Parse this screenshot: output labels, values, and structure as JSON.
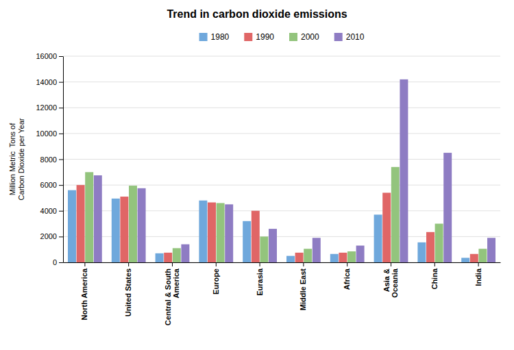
{
  "chart_data": {
    "type": "bar",
    "title": "Trend in carbon dioxide emissions",
    "ylabel": "Million Metric  Tons of\nCarbon Dioxide per Year",
    "categories": [
      "North America",
      "United States",
      "Central & South\nAmerica",
      "Europe",
      "Eurasia",
      "Middle East",
      "Africa",
      "Asia &\nOceania",
      "China",
      "India"
    ],
    "series": [
      {
        "name": "1980",
        "color": "#6fa8dc",
        "values": [
          5600,
          4950,
          700,
          4800,
          3200,
          500,
          650,
          3700,
          1550,
          350
        ]
      },
      {
        "name": "1990",
        "color": "#e06666",
        "values": [
          6000,
          5100,
          750,
          4650,
          4000,
          750,
          750,
          5400,
          2350,
          650
        ]
      },
      {
        "name": "2000",
        "color": "#93c47d",
        "values": [
          7000,
          5950,
          1100,
          4600,
          2000,
          1050,
          850,
          7400,
          3000,
          1050
        ]
      },
      {
        "name": "2010",
        "color": "#8e7cc3",
        "values": [
          6750,
          5750,
          1400,
          4500,
          2600,
          1900,
          1300,
          14200,
          8500,
          1900
        ]
      }
    ],
    "ylim": [
      0,
      16000
    ],
    "yticks": [
      0,
      2000,
      4000,
      6000,
      8000,
      10000,
      12000,
      14000,
      16000
    ],
    "grid": true,
    "legend": "top"
  }
}
